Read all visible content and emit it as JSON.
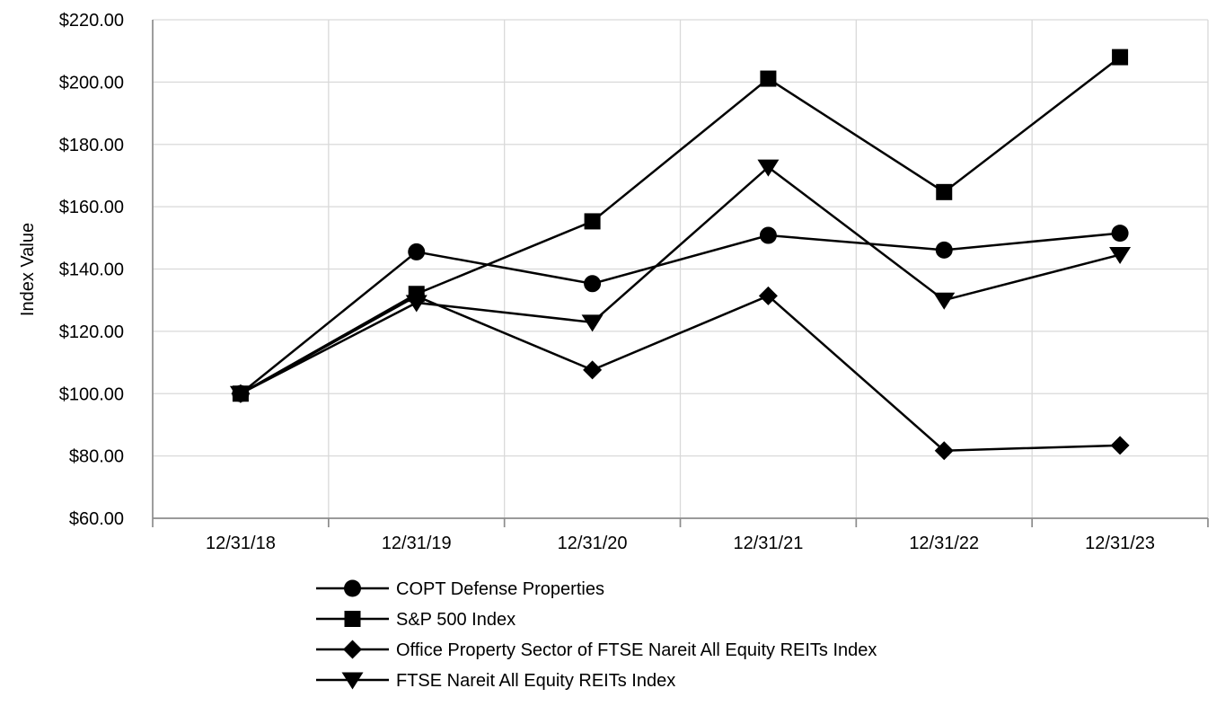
{
  "chart_data": {
    "type": "line",
    "title": "",
    "xlabel": "",
    "ylabel": "Index Value",
    "categories": [
      "12/31/18",
      "12/31/19",
      "12/31/20",
      "12/31/21",
      "12/31/22",
      "12/31/23"
    ],
    "series": [
      {
        "name": "COPT Defense Properties",
        "marker": "circle",
        "values": [
          100.0,
          145.5,
          135.3,
          150.8,
          146.1,
          151.5
        ]
      },
      {
        "name": "S&P 500 Index",
        "marker": "square",
        "values": [
          100.0,
          132.0,
          155.3,
          201.1,
          164.7,
          208.0
        ]
      },
      {
        "name": "Office Property Sector of FTSE Nareit All Equity REITs Index",
        "marker": "diamond",
        "values": [
          100.0,
          131.3,
          107.6,
          131.4,
          81.7,
          83.4
        ]
      },
      {
        "name": "FTSE Nareit All Equity REITs Index",
        "marker": "triangle-down",
        "values": [
          100.0,
          129.2,
          122.9,
          172.7,
          130.0,
          144.6
        ]
      }
    ],
    "y_ticks": [
      "$220.00",
      "$200.00",
      "$180.00",
      "$160.00",
      "$140.00",
      "$120.00",
      "$100.00",
      "$80.00",
      "$60.00"
    ],
    "ylim": [
      60,
      220
    ],
    "y_tick_step": 20,
    "grid": true,
    "legend_position": "bottom-left",
    "line_color": "#000000",
    "marker_color": "#000000",
    "gridline_color": "#d9d9d9",
    "axis_color": "#8c8c8c",
    "text_color": "#000000",
    "background": "#ffffff"
  }
}
